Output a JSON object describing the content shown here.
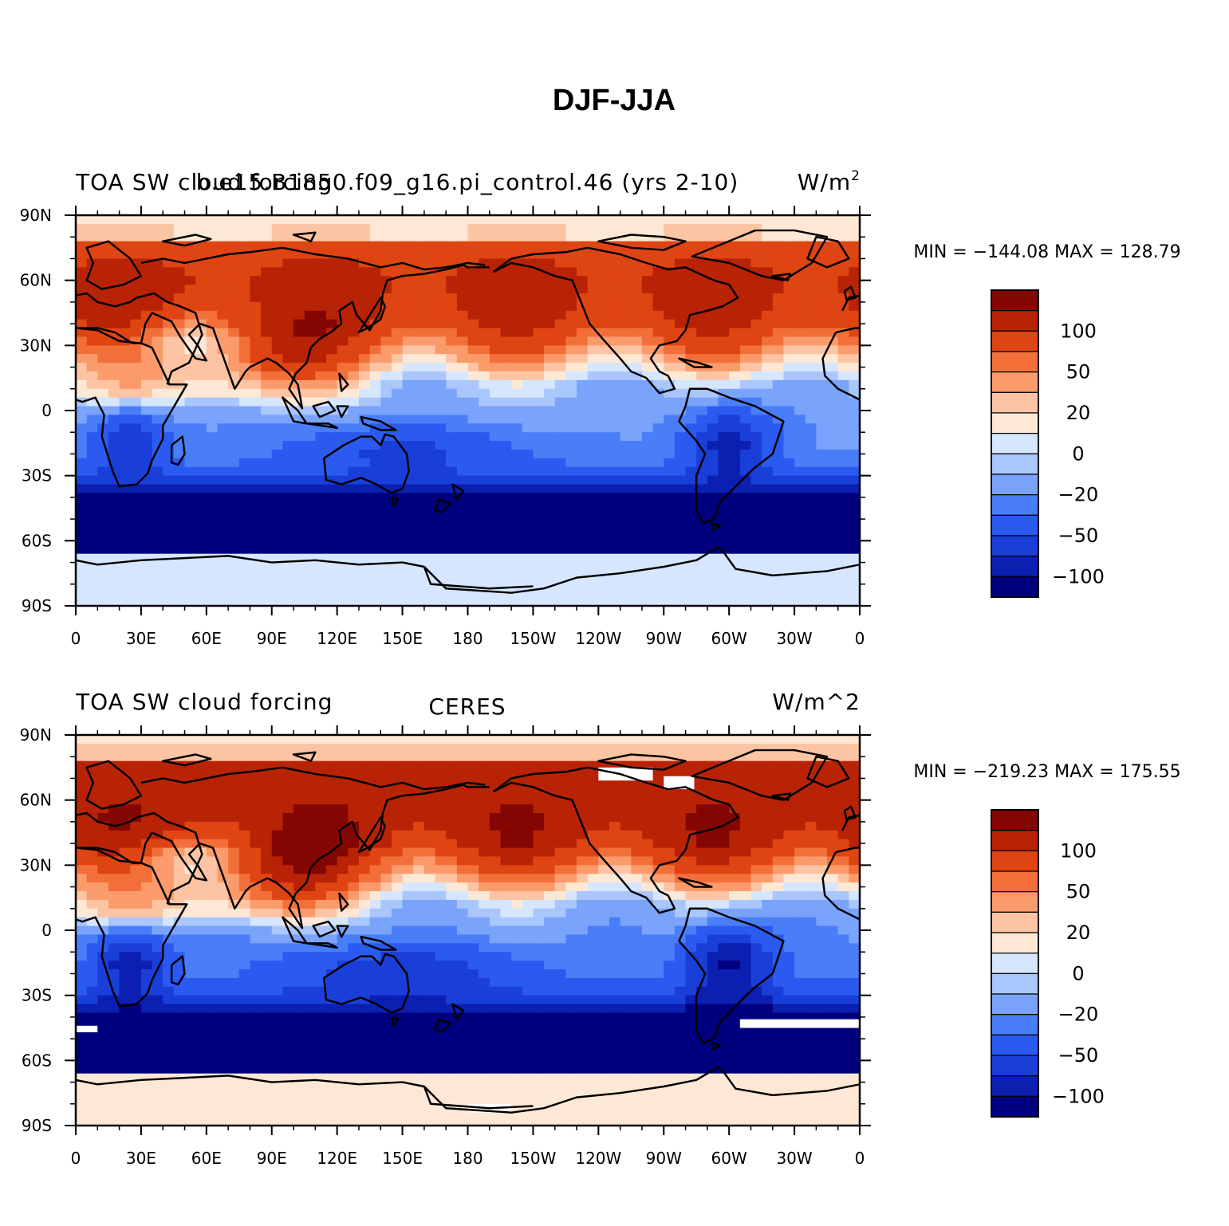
{
  "figure_title": "DJF-JJA",
  "colors": {
    "levels": [
      "#00007f",
      "#0b1fb0",
      "#1a3fd8",
      "#2b5af0",
      "#4a7ef8",
      "#7aa3fb",
      "#a9c6fd",
      "#d6e6fe",
      "#fde8d6",
      "#fdc4a4",
      "#fb9b6b",
      "#f36f3a",
      "#df4413",
      "#b82306",
      "#830603"
    ],
    "land_line": "#000000",
    "missing": "#ffffff"
  },
  "lon_ticks": [
    "0",
    "30E",
    "60E",
    "90E",
    "120E",
    "150E",
    "180",
    "150W",
    "120W",
    "90W",
    "60W",
    "30W",
    "0"
  ],
  "lat_ticks": [
    "90N",
    "60N",
    "30N",
    "0",
    "30S",
    "60S",
    "90S"
  ],
  "panels": [
    {
      "left_title": "TOA SW cloud forcing",
      "center_title": "b.e15.B1850.f09_g16.pi_control.46 (yrs 2-10)",
      "right_title": "W/m",
      "right_title_sup": "2",
      "stats": "MIN = −144.08  MAX = 128.79",
      "colorbar_labels": [
        "100",
        "50",
        "20",
        "0",
        "−20",
        "−50",
        "−100"
      ],
      "field": "model"
    },
    {
      "left_title": "TOA SW cloud forcing",
      "center_title": "CERES",
      "right_title": "W/m^2",
      "right_title_sup": "",
      "stats": "MIN = −219.23  MAX = 175.55",
      "colorbar_labels": [
        "100",
        "50",
        "20",
        "0",
        "−20",
        "−50",
        "−100"
      ],
      "field": "obs"
    }
  ]
}
